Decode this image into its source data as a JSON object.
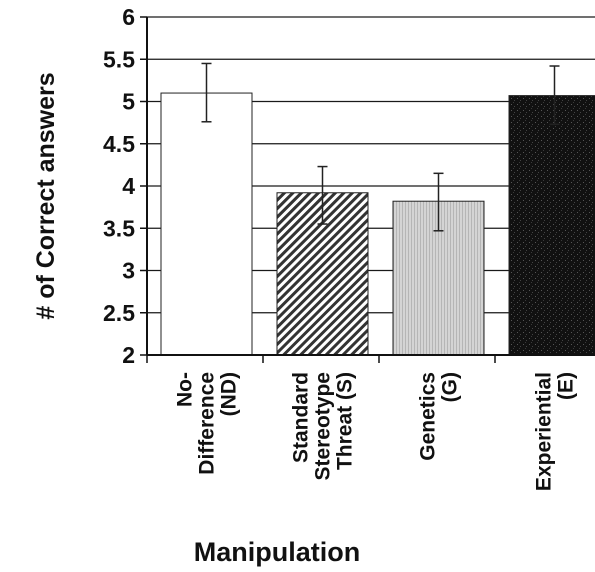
{
  "chart_data": {
    "type": "bar",
    "title": "",
    "xlabel": "Manipulation",
    "ylabel": "# of Correct answers",
    "ylim": [
      2,
      6
    ],
    "yticks": [
      {
        "value": 6,
        "label": "6"
      },
      {
        "value": 5.5,
        "label": "5.5"
      },
      {
        "value": 5,
        "label": "5"
      },
      {
        "value": 4.5,
        "label": "4.5"
      },
      {
        "value": 4,
        "label": "4"
      },
      {
        "value": 3.5,
        "label": "3.5"
      },
      {
        "value": 3,
        "label": "3"
      },
      {
        "value": 2.5,
        "label": "2.5"
      },
      {
        "value": 2,
        "label": "2"
      }
    ],
    "grid": true,
    "legend": "none",
    "categories": [
      [
        "No-",
        "Difference",
        "(ND)"
      ],
      [
        "Standard",
        "Stereotype",
        "Threat (S)"
      ],
      [
        "Genetics",
        "(G)"
      ],
      [
        "Experiential",
        "(E)"
      ]
    ],
    "series": [
      {
        "values": [
          5.1,
          3.92,
          3.82,
          5.07
        ],
        "error_low": [
          4.76,
          3.55,
          3.47,
          4.73
        ],
        "error_high": [
          5.45,
          4.23,
          4.15,
          5.42
        ],
        "fills": [
          "white",
          "diagonal-hatch",
          "light-gray-dots",
          "black-speckle"
        ]
      }
    ]
  }
}
